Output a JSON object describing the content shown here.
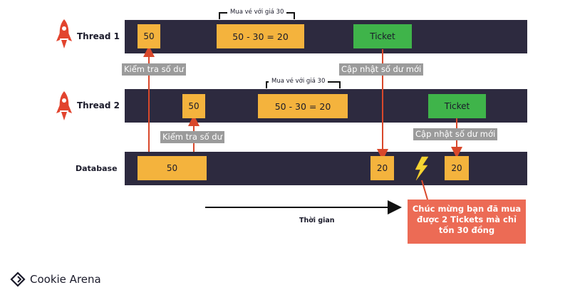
{
  "rows": {
    "thread1": "Thread 1",
    "thread2": "Thread 2",
    "database": "Database"
  },
  "thread1": {
    "balance": "50",
    "calc": "50 - 30 = 20",
    "buy_note": "Mua vé với giá 30",
    "ticket": "Ticket",
    "check_note": "Kiểm tra số dư",
    "update_note": "Cập nhật số dư mới"
  },
  "thread2": {
    "balance": "50",
    "calc": "50 - 30 = 20",
    "buy_note": "Mua vé với giá 30",
    "ticket": "Ticket",
    "check_note": "Kiểm tra số dư",
    "update_note": "Cập nhật số dư mới"
  },
  "database": {
    "initial": "50",
    "after_t1": "20",
    "after_t2": "20"
  },
  "timeline_label": "Thời gian",
  "callout": {
    "line1": "Chúc mừng bạn đã mua",
    "line2": "được 2 Tickets mà chỉ",
    "line3": "tốn 30 đồng"
  },
  "brand": "Cookie Arena",
  "colors": {
    "lane": "#2d2a3f",
    "box": "#f4b33d",
    "ticket": "#3fb44a",
    "arrow": "#d9482b",
    "callout": "#ec6b55",
    "note": "#9b9b9b"
  }
}
